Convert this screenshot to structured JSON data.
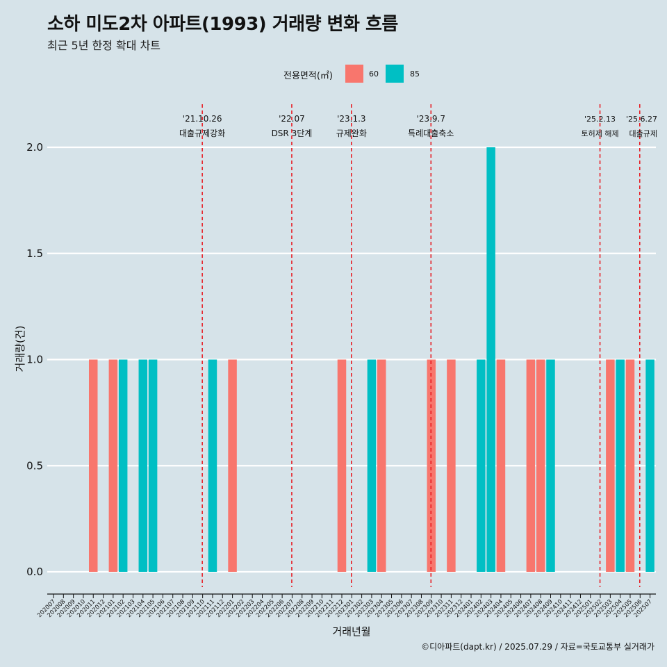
{
  "header": {
    "title": "소하 미도2차 아파트(1993) 거래량 변화 흐름",
    "subtitle": "최근 5년 한정 확대 차트"
  },
  "legend": {
    "title": "전용면적(㎡)",
    "items": [
      {
        "label": "60",
        "color": "#F8766D"
      },
      {
        "label": "85",
        "color": "#00BFC4"
      }
    ]
  },
  "caption": "©디아파트(dapt.kr) / 2025.07.29 / 자료=국토교통부 실거래가",
  "chart_data": {
    "type": "bar",
    "xlabel": "거래년월",
    "ylabel": "거래량(건)",
    "ylim": [
      0,
      2
    ],
    "yticks": [
      0.0,
      0.5,
      1.0,
      1.5,
      2.0
    ],
    "ytick_labels": [
      "0.0",
      "0.5",
      "1.0",
      "1.5",
      "2.0"
    ],
    "grid": true,
    "legend_position": "top",
    "categories": [
      "202007",
      "202008",
      "202009",
      "202010",
      "202011",
      "202012",
      "202101",
      "202102",
      "202103",
      "202104",
      "202105",
      "202106",
      "202107",
      "202108",
      "202109",
      "202110",
      "202111",
      "202112",
      "202201",
      "202202",
      "202203",
      "202204",
      "202205",
      "202206",
      "202207",
      "202208",
      "202209",
      "202210",
      "202211",
      "202212",
      "202301",
      "202302",
      "202303",
      "202304",
      "202305",
      "202306",
      "202307",
      "202308",
      "202309",
      "202310",
      "202311",
      "202312",
      "202401",
      "202402",
      "202403",
      "202404",
      "202405",
      "202406",
      "202407",
      "202408",
      "202409",
      "202410",
      "202411",
      "202412",
      "202501",
      "202502",
      "202503",
      "202504",
      "202505",
      "202506",
      "202507"
    ],
    "series": [
      {
        "name": "60",
        "color": "#F8766D",
        "values": [
          0,
          0,
          0,
          0,
          1,
          0,
          1,
          0,
          0,
          0,
          0,
          0,
          0,
          0,
          0,
          0,
          0,
          0,
          1,
          0,
          0,
          0,
          0,
          0,
          0,
          0,
          0,
          0,
          0,
          1,
          0,
          0,
          0,
          1,
          0,
          0,
          0,
          0,
          1,
          0,
          1,
          0,
          0,
          0,
          0,
          1,
          0,
          0,
          1,
          1,
          0,
          0,
          0,
          0,
          0,
          0,
          1,
          0,
          1,
          0,
          0
        ]
      },
      {
        "name": "85",
        "color": "#00BFC4",
        "values": [
          0,
          0,
          0,
          0,
          0,
          0,
          0,
          1,
          0,
          1,
          1,
          0,
          0,
          0,
          0,
          0,
          1,
          0,
          0,
          0,
          0,
          0,
          0,
          0,
          0,
          0,
          0,
          0,
          0,
          0,
          0,
          0,
          1,
          0,
          0,
          0,
          0,
          0,
          0,
          0,
          0,
          0,
          0,
          1,
          2,
          0,
          0,
          0,
          0,
          0,
          1,
          0,
          0,
          0,
          0,
          0,
          0,
          1,
          0,
          0,
          1
        ]
      }
    ],
    "events": [
      {
        "date": "'21.10.26",
        "label": "대출규제강화",
        "month": "202110"
      },
      {
        "date": "'22.07",
        "label": "DSR 3단계",
        "month": "202207"
      },
      {
        "date": "'23.1.3",
        "label": "규제완화",
        "month": "202301"
      },
      {
        "date": "'23.9.7",
        "label": "특례대출축소",
        "month": "202309"
      },
      {
        "date": "'25.2.13",
        "label": "토허제 해제",
        "month": "202502"
      },
      {
        "date": "'25.6.27",
        "label": "대출규제",
        "month": "202506"
      }
    ]
  }
}
